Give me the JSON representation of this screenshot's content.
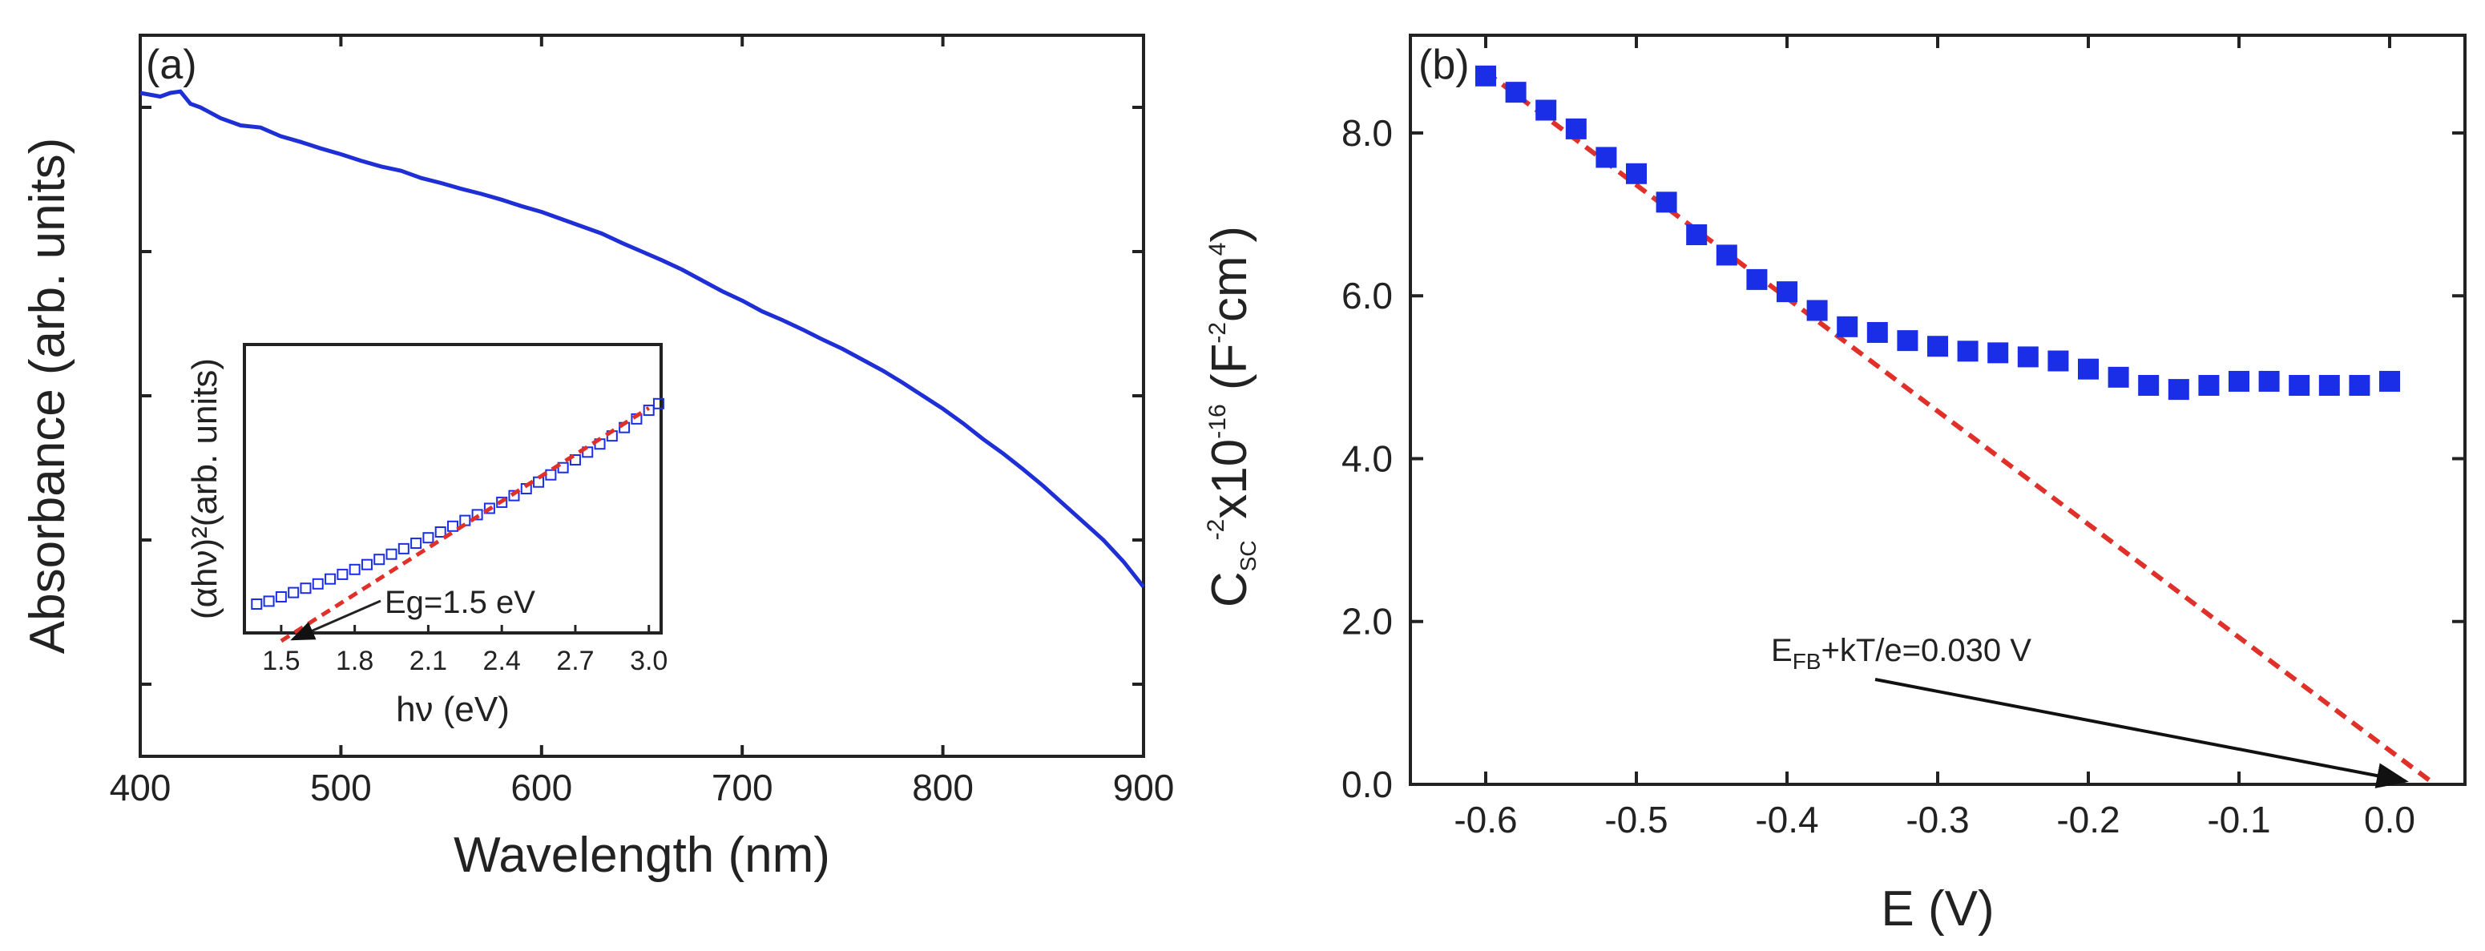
{
  "colors": {
    "series": "#1f2fd6",
    "fit": "#e0302a",
    "axis": "#222222",
    "marker": "#1a2ee8"
  },
  "chart_data": [
    {
      "panel_label": "(a)",
      "type": "line",
      "title": "",
      "xlabel": "Wavelength (nm)",
      "ylabel": "Absorbance (arb. units)",
      "xlim": [
        400,
        900
      ],
      "ylim": [
        0,
        1
      ],
      "x_ticks": [
        400,
        500,
        600,
        700,
        800,
        900
      ],
      "series": [
        {
          "name": "absorbance",
          "x": [
            400,
            410,
            415,
            420,
            425,
            430,
            440,
            450,
            460,
            470,
            480,
            490,
            500,
            510,
            520,
            530,
            540,
            550,
            560,
            570,
            580,
            590,
            600,
            610,
            620,
            630,
            640,
            650,
            660,
            670,
            680,
            690,
            700,
            710,
            720,
            730,
            740,
            750,
            760,
            770,
            780,
            790,
            800,
            810,
            820,
            830,
            840,
            850,
            860,
            870,
            880,
            890,
            900
          ],
          "y": [
            0.92,
            0.915,
            0.92,
            0.922,
            0.905,
            0.9,
            0.885,
            0.875,
            0.872,
            0.86,
            0.852,
            0.843,
            0.835,
            0.826,
            0.818,
            0.812,
            0.802,
            0.795,
            0.787,
            0.78,
            0.772,
            0.763,
            0.755,
            0.745,
            0.735,
            0.725,
            0.712,
            0.7,
            0.688,
            0.675,
            0.66,
            0.645,
            0.632,
            0.617,
            0.605,
            0.592,
            0.578,
            0.565,
            0.55,
            0.535,
            0.518,
            0.5,
            0.482,
            0.462,
            0.44,
            0.42,
            0.398,
            0.375,
            0.35,
            0.325,
            0.3,
            0.27,
            0.235
          ]
        }
      ],
      "inset": {
        "type": "scatter",
        "xlabel": "hν (eV)",
        "ylabel": "(αhν)²(arb. units)",
        "xlim": [
          1.35,
          3.05
        ],
        "ylim": [
          0,
          1
        ],
        "x_ticks": [
          "1.5",
          "1.8",
          "2.1",
          "2.4",
          "2.7",
          "3.0"
        ],
        "series": [
          {
            "name": "data",
            "x": [
              1.4,
              1.45,
              1.5,
              1.55,
              1.6,
              1.65,
              1.7,
              1.75,
              1.8,
              1.85,
              1.9,
              1.95,
              2.0,
              2.05,
              2.1,
              2.15,
              2.2,
              2.25,
              2.3,
              2.35,
              2.4,
              2.45,
              2.5,
              2.55,
              2.6,
              2.65,
              2.7,
              2.75,
              2.8,
              2.85,
              2.9,
              2.95,
              3.0,
              3.04
            ],
            "y": [
              0.1,
              0.11,
              0.125,
              0.14,
              0.155,
              0.17,
              0.187,
              0.203,
              0.22,
              0.237,
              0.255,
              0.273,
              0.292,
              0.311,
              0.33,
              0.35,
              0.37,
              0.39,
              0.41,
              0.432,
              0.453,
              0.476,
              0.5,
              0.523,
              0.548,
              0.573,
              0.6,
              0.627,
              0.655,
              0.683,
              0.712,
              0.742,
              0.772,
              0.795
            ]
          }
        ],
        "fit_line": {
          "x": [
            1.5,
            3.0
          ],
          "y": [
            0.0,
            0.78
          ]
        },
        "annotation": "Eg=1.5 eV"
      }
    },
    {
      "panel_label": "(b)",
      "type": "scatter",
      "title": "",
      "xlabel": "E (V)",
      "ylabel": "CSC-2x10-16 (F-2cm4)",
      "ylabel_parts": {
        "c": "C",
        "sub": "SC",
        "sup1": "-2",
        "mid": "x10",
        "sup2": "-16",
        "open": " (F",
        "sup3": "-2",
        "cm": "cm",
        "sup4": "4",
        "close": ")"
      },
      "xlim": [
        -0.65,
        0.05
      ],
      "ylim": [
        0.0,
        9.2
      ],
      "x_ticks": [
        "-0.6",
        "-0.5",
        "-0.4",
        "-0.3",
        "-0.2",
        "-0.1",
        "0.0"
      ],
      "y_ticks": [
        "0.0",
        "2.0",
        "4.0",
        "6.0",
        "8.0"
      ],
      "series": [
        {
          "name": "data",
          "x": [
            -0.6,
            -0.58,
            -0.56,
            -0.54,
            -0.52,
            -0.5,
            -0.48,
            -0.46,
            -0.44,
            -0.42,
            -0.4,
            -0.38,
            -0.36,
            -0.34,
            -0.32,
            -0.3,
            -0.28,
            -0.26,
            -0.24,
            -0.22,
            -0.2,
            -0.18,
            -0.16,
            -0.14,
            -0.12,
            -0.1,
            -0.08,
            -0.06,
            -0.04,
            -0.02,
            0.0
          ],
          "y": [
            8.7,
            8.5,
            8.28,
            8.05,
            7.7,
            7.5,
            7.15,
            6.75,
            6.5,
            6.2,
            6.05,
            5.82,
            5.62,
            5.55,
            5.45,
            5.38,
            5.32,
            5.3,
            5.25,
            5.2,
            5.1,
            5.0,
            4.9,
            4.85,
            4.9,
            4.95,
            4.95,
            4.9,
            4.9,
            4.9,
            4.95
          ]
        }
      ],
      "fit_line": {
        "x": [
          -0.6,
          0.03
        ],
        "y": [
          8.75,
          0.0
        ]
      },
      "annotation": {
        "E": "E",
        "sub": "FB",
        "rest": "+kT/e=0.030 V",
        "x": 0.0,
        "y": 0.0
      }
    }
  ]
}
